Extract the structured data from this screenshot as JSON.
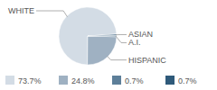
{
  "chart_data": {
    "type": "pie",
    "categories": [
      "WHITE",
      "HISPANIC",
      "A.I.",
      "ASIAN"
    ],
    "values": [
      73.7,
      24.8,
      0.7,
      0.7
    ],
    "value_labels": [
      "73.7%",
      "24.8%",
      "0.7%",
      "0.7%"
    ],
    "colors": [
      "#d3dce5",
      "#9fb1c2",
      "#5d7f99",
      "#2f5a7a"
    ],
    "legend": "bottom"
  }
}
